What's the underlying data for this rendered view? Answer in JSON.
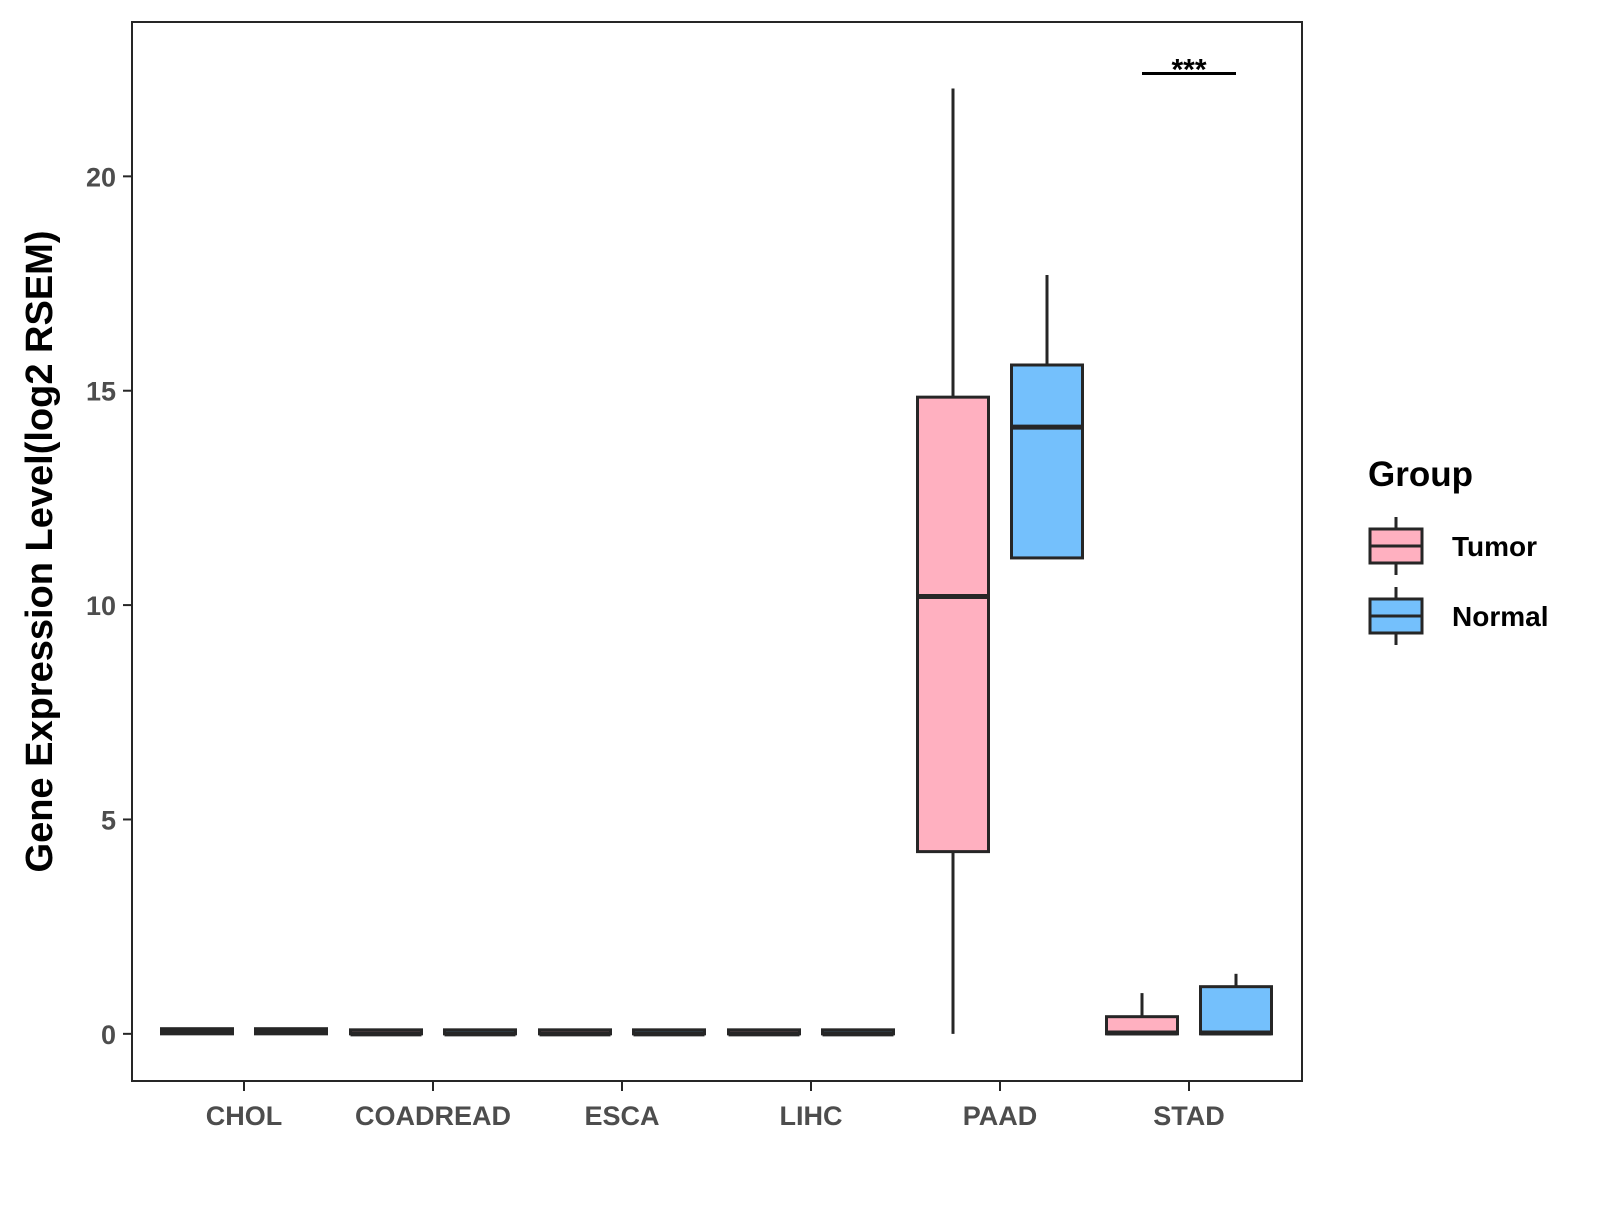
{
  "chart_data": {
    "type": "boxplot",
    "title": "",
    "xlabel": "",
    "ylabel": "Gene Expression Level(log2 RSEM)",
    "ylim": [
      -1.1,
      23.6
    ],
    "yticks": [
      0,
      5,
      10,
      15,
      20
    ],
    "yticks_labels": [
      "0",
      "5",
      "10",
      "15",
      "20"
    ],
    "grid": false,
    "categories": [
      "CHOL",
      "COADREAD",
      "ESCA",
      "LIHC",
      "PAAD",
      "STAD"
    ],
    "legend": {
      "title": "Group",
      "position": "right",
      "items": [
        "Tumor",
        "Normal"
      ]
    },
    "colors": {
      "Tumor": "#FFB0C0",
      "Normal": "#74C0FC",
      "outline": "#262626"
    },
    "series": [
      {
        "name": "Tumor",
        "boxes": [
          {
            "category": "CHOL",
            "min": 0,
            "q1": 0,
            "median": 0.05,
            "q3": 0.12,
            "max": 0.12
          },
          {
            "category": "COADREAD",
            "min": 0,
            "q1": 0,
            "median": 0,
            "q3": 0.02,
            "max": 0.02
          },
          {
            "category": "ESCA",
            "min": 0,
            "q1": 0,
            "median": 0,
            "q3": 0.02,
            "max": 0.02
          },
          {
            "category": "LIHC",
            "min": 0,
            "q1": 0,
            "median": 0,
            "q3": 0.02,
            "max": 0.02
          },
          {
            "category": "PAAD",
            "min": 0,
            "q1": 4.25,
            "median": 10.2,
            "q3": 14.85,
            "max": 22.05
          },
          {
            "category": "STAD",
            "min": 0,
            "q1": 0,
            "median": 0.02,
            "q3": 0.4,
            "max": 0.95
          }
        ]
      },
      {
        "name": "Normal",
        "boxes": [
          {
            "category": "CHOL",
            "min": 0,
            "q1": 0,
            "median": 0.05,
            "q3": 0.12,
            "max": 0.12
          },
          {
            "category": "COADREAD",
            "min": 0,
            "q1": 0,
            "median": 0,
            "q3": 0.02,
            "max": 0.02
          },
          {
            "category": "ESCA",
            "min": 0,
            "q1": 0,
            "median": 0,
            "q3": 0.02,
            "max": 0.02
          },
          {
            "category": "LIHC",
            "min": 0,
            "q1": 0,
            "median": 0,
            "q3": 0.02,
            "max": 0.02
          },
          {
            "category": "PAAD",
            "min": 11.1,
            "q1": 11.1,
            "median": 14.15,
            "q3": 15.6,
            "max": 17.7
          },
          {
            "category": "STAD",
            "min": 0,
            "q1": 0,
            "median": 0.02,
            "q3": 1.1,
            "max": 1.4
          }
        ]
      }
    ],
    "annotations": [
      {
        "category": "STAD",
        "text": "***",
        "y": 22.4
      }
    ]
  }
}
